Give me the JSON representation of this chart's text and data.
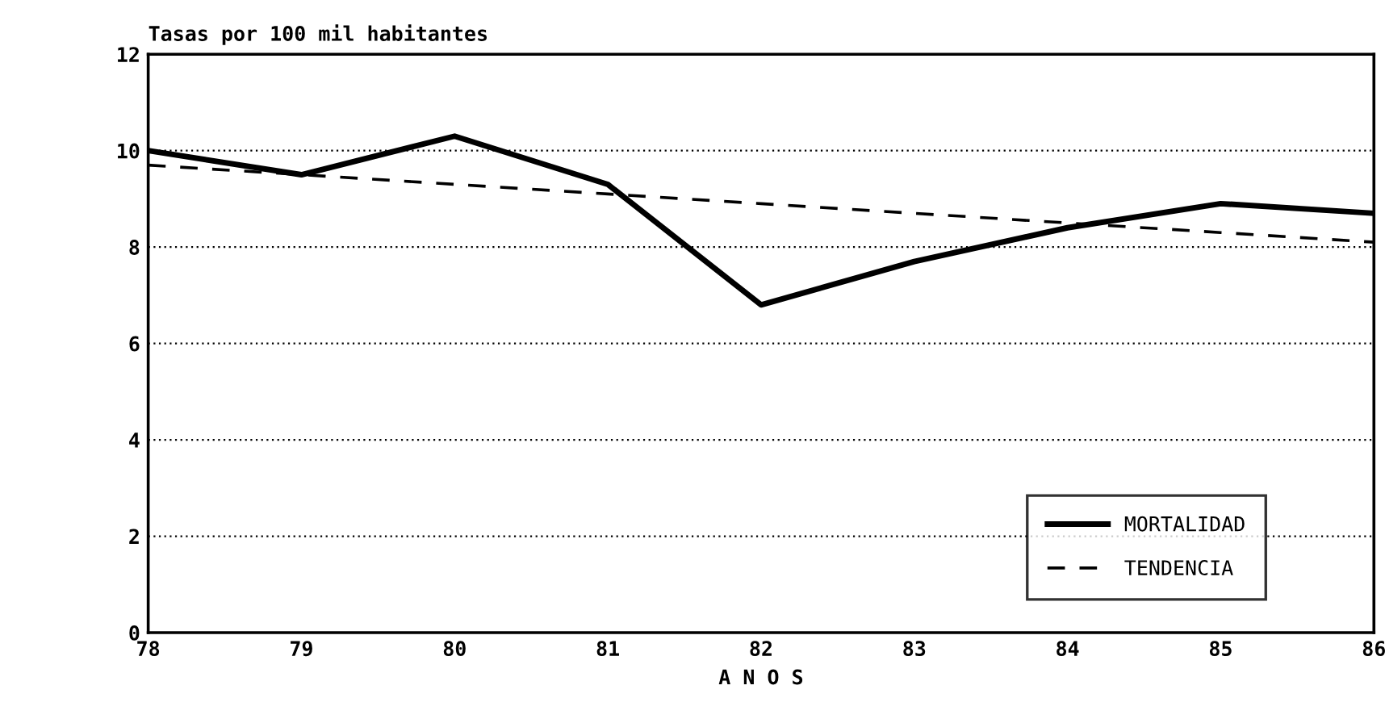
{
  "chart_data": {
    "type": "line",
    "title": "Tasas por 100 mil habitantes",
    "xlabel": "A N O S",
    "categories": [
      "78",
      "79",
      "80",
      "81",
      "82",
      "83",
      "84",
      "85",
      "86"
    ],
    "series": [
      {
        "name": "MORTALIDAD",
        "color": "#000000",
        "line_style": "solid",
        "values": [
          10.0,
          9.5,
          10.3,
          9.3,
          6.8,
          7.7,
          8.4,
          8.9,
          8.7
        ]
      },
      {
        "name": "TENDENCIA",
        "color": "#000000",
        "line_style": "dashed",
        "values": [
          9.7,
          9.5,
          9.3,
          9.1,
          8.9,
          8.7,
          8.5,
          8.3,
          8.1
        ]
      }
    ],
    "ylim": [
      0,
      12
    ],
    "yticks": [
      0,
      2,
      4,
      6,
      8,
      10,
      12
    ],
    "grid": "y",
    "legend": "bottom right",
    "marker": "none"
  }
}
